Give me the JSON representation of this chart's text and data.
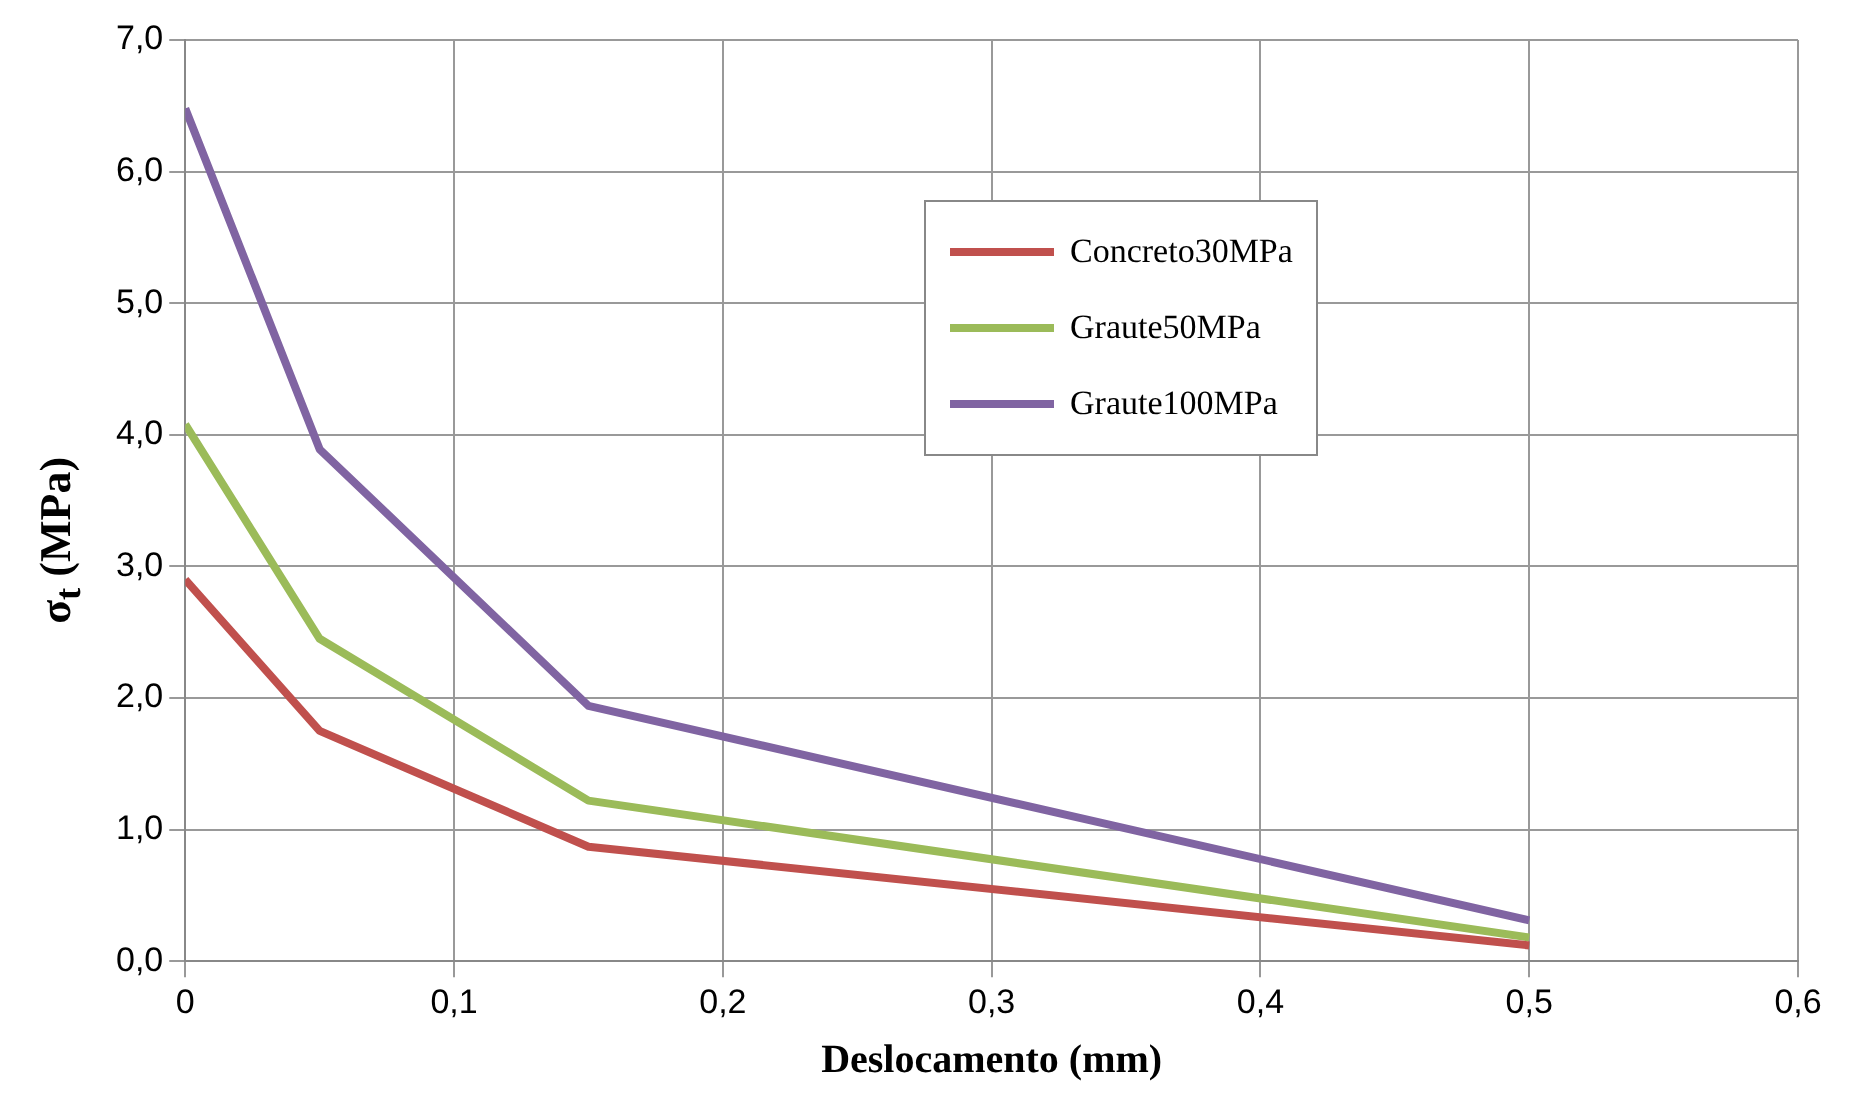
{
  "chart_data": {
    "type": "line",
    "xlabel": "Deslocamento (mm)",
    "ylabel": "σ$_{t}$ (MPa)",
    "x": [
      0,
      0.05,
      0.15,
      0.5
    ],
    "series": [
      {
        "name": "Concreto30MPa",
        "color": "#c0504d",
        "values": [
          2.9,
          1.75,
          0.87,
          0.12
        ]
      },
      {
        "name": "Graute50MPa",
        "color": "#9bbb59",
        "values": [
          4.08,
          2.45,
          1.22,
          0.18
        ]
      },
      {
        "name": "Graute100MPa",
        "color": "#8064a2",
        "values": [
          6.48,
          3.89,
          1.94,
          0.31
        ]
      }
    ],
    "xlim": [
      0,
      0.6
    ],
    "xticks": [
      {
        "value": 0,
        "label": "0"
      },
      {
        "value": 0.1,
        "label": "0,1"
      },
      {
        "value": 0.2,
        "label": "0,2"
      },
      {
        "value": 0.3,
        "label": "0,3"
      },
      {
        "value": 0.4,
        "label": "0,4"
      },
      {
        "value": 0.5,
        "label": "0,5"
      },
      {
        "value": 0.6,
        "label": "0,6"
      }
    ],
    "ylim": [
      0,
      7
    ],
    "yticks": [
      {
        "value": 0,
        "label": "0,0"
      },
      {
        "value": 1,
        "label": "1,0"
      },
      {
        "value": 2,
        "label": "2,0"
      },
      {
        "value": 3,
        "label": "3,0"
      },
      {
        "value": 4,
        "label": "4,0"
      },
      {
        "value": 5,
        "label": "5,0"
      },
      {
        "value": 6,
        "label": "6,0"
      },
      {
        "value": 7,
        "label": "7,0"
      }
    ],
    "grid": true,
    "legend": "top right",
    "marker": "none",
    "line_style": "solid"
  }
}
